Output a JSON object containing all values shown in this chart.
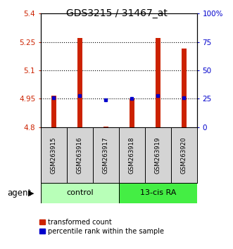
{
  "title": "GDS3215 / 31467_at",
  "samples": [
    "GSM263915",
    "GSM263916",
    "GSM263917",
    "GSM263918",
    "GSM263919",
    "GSM263920"
  ],
  "group_labels": [
    "control",
    "13-cis RA"
  ],
  "bar_bottom": 4.8,
  "bar_tops": [
    4.965,
    5.27,
    4.803,
    4.95,
    5.27,
    5.215
  ],
  "percentile_values": [
    4.956,
    4.966,
    4.944,
    4.951,
    4.966,
    4.956
  ],
  "ylim_left": [
    4.8,
    5.4
  ],
  "ylim_right": [
    0,
    100
  ],
  "yticks_left": [
    4.8,
    4.95,
    5.1,
    5.25,
    5.4
  ],
  "ytick_labels_left": [
    "4.8",
    "4.95",
    "5.1",
    "5.25",
    "5.4"
  ],
  "yticks_right": [
    0,
    25,
    50,
    75,
    100
  ],
  "ytick_labels_right": [
    "0",
    "25",
    "50",
    "75",
    "100%"
  ],
  "hlines": [
    4.95,
    5.1,
    5.25
  ],
  "bar_color": "#cc2200",
  "percentile_color": "#0000cc",
  "bar_width": 0.18,
  "left_label_color": "#cc2200",
  "right_label_color": "#0000cc",
  "legend_red_label": "transformed count",
  "legend_blue_label": "percentile rank within the sample",
  "agent_label": "agent",
  "ctrl_color": "#b8ffb8",
  "ra_color": "#44ee44",
  "sample_bg_color": "#d4d4d4"
}
